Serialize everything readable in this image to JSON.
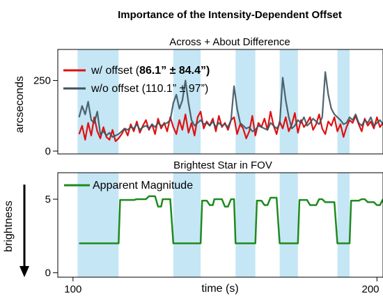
{
  "figure_title": "Importance of the Intensity-Dependent Offset",
  "chart_data": [
    {
      "type": "line",
      "title": "Across + About Difference",
      "ylabel": "arcseconds",
      "xlim": [
        95,
        202
      ],
      "ylim": [
        -10,
        360
      ],
      "yticks": [
        0,
        250
      ],
      "xticks": [],
      "shaded_x_ranges": [
        [
          101.5,
          115
        ],
        [
          133,
          142
        ],
        [
          153.5,
          160
        ],
        [
          168,
          174
        ],
        [
          187,
          191
        ]
      ],
      "legend": {
        "placement": "top-left",
        "entries": [
          {
            "text": "w/ offset (",
            "bold": "86.1” ± 84.4”",
            "end": ")"
          },
          {
            "text": "w/o offset (110.1” ± 97”)",
            "bold": "",
            "end": ""
          }
        ]
      },
      "series": [
        {
          "color": "#e01010",
          "x": [
            102,
            103,
            104,
            105,
            106,
            107,
            108,
            109,
            110,
            111,
            112,
            113,
            114,
            115,
            116,
            117,
            118,
            119,
            120,
            121,
            122,
            123,
            124,
            125,
            126,
            127,
            128,
            129,
            130,
            131,
            132,
            133,
            134,
            135,
            136,
            137,
            138,
            139,
            140,
            141,
            142,
            143,
            144,
            145,
            146,
            147,
            148,
            149,
            150,
            151,
            152,
            153,
            154,
            155,
            156,
            157,
            158,
            159,
            160,
            161,
            162,
            163,
            164,
            165,
            166,
            167,
            168,
            169,
            170,
            171,
            172,
            173,
            174,
            175,
            176,
            177,
            178,
            179,
            180,
            181,
            182,
            183,
            184,
            185,
            186,
            187,
            188,
            189,
            190,
            191,
            192,
            193,
            194,
            195,
            196,
            197,
            198,
            199,
            200,
            201,
            202
          ],
          "values": [
            60,
            90,
            40,
            100,
            55,
            120,
            70,
            45,
            85,
            50,
            40,
            75,
            35,
            45,
            60,
            80,
            55,
            95,
            70,
            105,
            65,
            90,
            110,
            75,
            95,
            60,
            115,
            80,
            100,
            70,
            120,
            85,
            60,
            110,
            75,
            130,
            65,
            100,
            55,
            120,
            140,
            80,
            105,
            90,
            115,
            70,
            125,
            85,
            100,
            75,
            110,
            120,
            60,
            95,
            80,
            45,
            70,
            125,
            55,
            100,
            85,
            115,
            75,
            140,
            90,
            60,
            105,
            80,
            120,
            70,
            95,
            135,
            65,
            110,
            85,
            100,
            120,
            75,
            95,
            130,
            80,
            60,
            105,
            90,
            120,
            70,
            95,
            50,
            85,
            110,
            100,
            125,
            95,
            70,
            115,
            90,
            105,
            80,
            120,
            85,
            100
          ]
        },
        {
          "color": "#3d5361",
          "x": [
            102,
            103,
            104,
            105,
            106,
            107,
            108,
            109,
            110,
            111,
            112,
            113,
            114,
            115,
            116,
            117,
            118,
            119,
            120,
            121,
            122,
            123,
            124,
            125,
            126,
            127,
            128,
            129,
            130,
            131,
            132,
            133,
            134,
            135,
            136,
            137,
            138,
            139,
            140,
            141,
            142,
            143,
            144,
            145,
            146,
            147,
            148,
            149,
            150,
            151,
            152,
            153,
            154,
            155,
            156,
            157,
            158,
            159,
            160,
            161,
            162,
            163,
            164,
            165,
            166,
            167,
            168,
            169,
            170,
            171,
            172,
            173,
            174,
            175,
            176,
            177,
            178,
            179,
            180,
            181,
            182,
            183,
            184,
            185,
            186,
            187,
            188,
            189,
            190,
            191,
            192,
            193,
            194,
            195,
            196,
            197,
            198,
            199,
            200,
            201,
            202
          ],
          "values": [
            120,
            160,
            130,
            175,
            110,
            100,
            140,
            60,
            70,
            55,
            65,
            50,
            55,
            60,
            70,
            80,
            75,
            85,
            80,
            95,
            75,
            85,
            90,
            80,
            95,
            85,
            100,
            90,
            95,
            100,
            110,
            170,
            200,
            150,
            180,
            250,
            170,
            110,
            90,
            100,
            110,
            95,
            100,
            90,
            105,
            85,
            100,
            90,
            95,
            85,
            110,
            230,
            150,
            100,
            90,
            80,
            85,
            70,
            75,
            90,
            85,
            80,
            75,
            100,
            90,
            80,
            95,
            260,
            180,
            120,
            80,
            90,
            110,
            100,
            120,
            90,
            100,
            115,
            105,
            95,
            120,
            280,
            200,
            150,
            130,
            120,
            110,
            95,
            100,
            120,
            110,
            130,
            100,
            90,
            110,
            100,
            120,
            90,
            100,
            110,
            95
          ]
        }
      ]
    },
    {
      "type": "line",
      "title": "Brightest Star in FOV",
      "xlabel": "time (s)",
      "ylabel": "brightness",
      "xlim": [
        95,
        202
      ],
      "ylim": [
        -0.3,
        6.8
      ],
      "xticks": [
        100,
        200
      ],
      "yticks": [
        0,
        5
      ],
      "shaded_x_ranges": [
        [
          101.5,
          115
        ],
        [
          133,
          142
        ],
        [
          153.5,
          160
        ],
        [
          168,
          174
        ],
        [
          187,
          191
        ]
      ],
      "legend": {
        "placement": "top-left",
        "entries": [
          {
            "text": "Apparent Magnitude",
            "bold": "",
            "end": ""
          }
        ]
      },
      "series": [
        {
          "color": "#1e8a1e",
          "x": [
            102,
            115,
            115.5,
            120,
            121,
            124,
            125,
            127,
            128,
            129,
            129.5,
            132,
            133,
            142,
            142.5,
            144,
            145,
            146,
            146.5,
            149,
            150,
            151,
            152,
            153,
            153.5,
            160,
            160.5,
            162,
            163,
            164,
            165,
            167,
            168,
            174,
            174.5,
            177,
            178,
            180,
            181,
            182,
            183,
            186,
            187,
            191,
            191.5,
            194,
            195,
            196,
            197,
            199,
            200,
            201,
            202
          ],
          "values": [
            2.0,
            2.0,
            4.95,
            4.95,
            5.0,
            5.0,
            5.2,
            5.2,
            4.5,
            4.5,
            5.0,
            5.0,
            2.0,
            2.0,
            4.9,
            4.9,
            4.6,
            4.6,
            5.0,
            5.0,
            4.5,
            4.5,
            5.0,
            5.0,
            2.0,
            2.0,
            4.9,
            4.9,
            4.6,
            4.6,
            5.1,
            5.1,
            2.0,
            2.0,
            4.95,
            4.95,
            4.6,
            4.6,
            5.0,
            5.0,
            4.8,
            4.8,
            2.0,
            2.0,
            4.9,
            4.9,
            5.0,
            5.0,
            4.8,
            4.8,
            4.6,
            4.6,
            5.0
          ]
        }
      ]
    }
  ]
}
